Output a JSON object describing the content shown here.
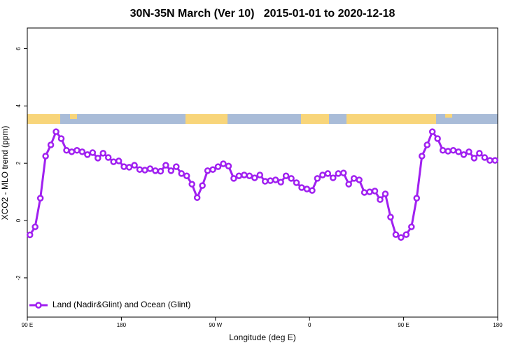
{
  "chart_data": {
    "type": "line",
    "title": "30N-35N March (Ver 10)   2015-01-01 to 2020-12-18",
    "x_label": "Longitude (deg E)",
    "y_label": "XCO2 - MLO trend (ppm)",
    "xlim": [
      90,
      540
    ],
    "xticks": [
      {
        "value": 90,
        "label": "90 E"
      },
      {
        "value": 180,
        "label": "180"
      },
      {
        "value": 270,
        "label": "90 W"
      },
      {
        "value": 360,
        "label": "0"
      },
      {
        "value": 450,
        "label": "90 E"
      },
      {
        "value": 540,
        "label": "180"
      }
    ],
    "ylim": [
      -3.37,
      6.72
    ],
    "yticks": [
      -2,
      0,
      2,
      4,
      6
    ],
    "legend": "bottomleft",
    "x": [
      92.5,
      97.5,
      102.5,
      107.5,
      112.5,
      117.5,
      122.5,
      127.5,
      132.5,
      137.5,
      142.5,
      147.5,
      152.5,
      157.5,
      162.5,
      167.5,
      172.5,
      177.5,
      182.5,
      187.5,
      192.5,
      197.5,
      202.5,
      207.5,
      212.5,
      217.5,
      222.5,
      227.5,
      232.5,
      237.5,
      242.5,
      247.5,
      252.5,
      257.5,
      262.5,
      267.5,
      272.5,
      277.5,
      282.5,
      287.5,
      292.5,
      297.5,
      302.5,
      307.5,
      312.5,
      317.5,
      322.5,
      327.5,
      332.5,
      337.5,
      342.5,
      347.5,
      352.5,
      357.5,
      362.5,
      367.5,
      372.5,
      377.5,
      382.5,
      387.5,
      392.5,
      397.5,
      402.5,
      407.5,
      412.5,
      417.5,
      422.5,
      427.5,
      432.5,
      437.5,
      442.5,
      447.5,
      452.5,
      457.5,
      462.5,
      467.5,
      472.5,
      477.5,
      482.5,
      487.5,
      492.5,
      497.5,
      502.5,
      507.5,
      512.5,
      517.5,
      522.5,
      527.5,
      532.5,
      537.5
    ],
    "series": [
      {
        "name": "Land (Nadir&Glint) and Ocean (Glint)",
        "color": "#a020f0",
        "values": [
          -0.5,
          -0.22,
          0.78,
          2.25,
          2.64,
          3.1,
          2.86,
          2.45,
          2.4,
          2.45,
          2.4,
          2.3,
          2.37,
          2.18,
          2.35,
          2.2,
          2.05,
          2.08,
          1.88,
          1.86,
          1.93,
          1.78,
          1.76,
          1.81,
          1.74,
          1.72,
          1.93,
          1.74,
          1.88,
          1.64,
          1.56,
          1.27,
          0.8,
          1.22,
          1.74,
          1.78,
          1.88,
          1.98,
          1.9,
          1.47,
          1.56,
          1.59,
          1.56,
          1.49,
          1.59,
          1.37,
          1.39,
          1.42,
          1.34,
          1.56,
          1.47,
          1.32,
          1.15,
          1.1,
          1.05,
          1.47,
          1.59,
          1.64,
          1.49,
          1.64,
          1.66,
          1.27,
          1.47,
          1.42,
          0.98,
          1.0,
          1.03,
          0.73,
          0.93,
          0.12,
          -0.49,
          -0.59,
          -0.49,
          -0.22,
          0.78,
          2.25,
          2.64,
          3.1,
          2.86,
          2.45,
          2.42,
          2.45,
          2.4,
          2.3,
          2.4,
          2.18,
          2.35,
          2.2,
          2.1,
          2.1
        ]
      }
    ]
  }
}
